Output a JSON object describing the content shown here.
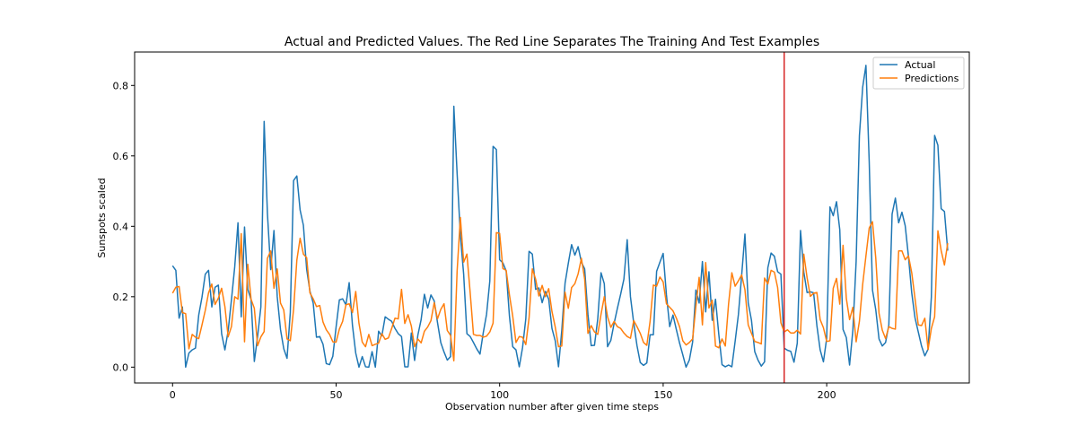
{
  "chart_data": {
    "type": "line",
    "title": "Actual and Predicted Values. The Red Line Separates The Training And Test Examples",
    "xlabel": "Observation number after given time steps",
    "ylabel": "Sunspots scaled",
    "xlim": [
      -11.6,
      243.6
    ],
    "ylim": [
      -0.045,
      0.895
    ],
    "xticks": [
      0,
      50,
      100,
      150,
      200
    ],
    "yticks": [
      0.0,
      0.2,
      0.4,
      0.6,
      0.8
    ],
    "xtick_labels": [
      "0",
      "50",
      "100",
      "150",
      "200"
    ],
    "ytick_labels": [
      "0.0",
      "0.2",
      "0.4",
      "0.6",
      "0.8"
    ],
    "grid": false,
    "legend_position": "top-right",
    "split_line": {
      "x": 187,
      "color": "#d62728"
    },
    "series": [
      {
        "name": "Actual",
        "color": "#1f77b4",
        "values": [
          0.288,
          0.275,
          0.139,
          0.171,
          0.0,
          0.04,
          0.049,
          0.054,
          0.148,
          0.199,
          0.264,
          0.275,
          0.171,
          0.227,
          0.233,
          0.095,
          0.049,
          0.103,
          0.191,
          0.284,
          0.41,
          0.143,
          0.398,
          0.221,
          0.192,
          0.016,
          0.087,
          0.171,
          0.698,
          0.437,
          0.277,
          0.388,
          0.2,
          0.107,
          0.052,
          0.025,
          0.155,
          0.53,
          0.543,
          0.446,
          0.403,
          0.278,
          0.216,
          0.182,
          0.085,
          0.087,
          0.065,
          0.01,
          0.007,
          0.031,
          0.114,
          0.191,
          0.194,
          0.177,
          0.24,
          0.119,
          0.04,
          0.0,
          0.03,
          0.001,
          0.0,
          0.044,
          0.0,
          0.102,
          0.089,
          0.143,
          0.136,
          0.13,
          0.11,
          0.095,
          0.087,
          0.001,
          0.001,
          0.097,
          0.019,
          0.091,
          0.135,
          0.207,
          0.168,
          0.205,
          0.188,
          0.127,
          0.07,
          0.043,
          0.02,
          0.03,
          0.741,
          0.55,
          0.374,
          0.264,
          0.095,
          0.087,
          0.07,
          0.052,
          0.037,
          0.098,
          0.15,
          0.245,
          0.627,
          0.618,
          0.305,
          0.296,
          0.273,
          0.145,
          0.058,
          0.049,
          0.001,
          0.055,
          0.137,
          0.329,
          0.321,
          0.221,
          0.225,
          0.183,
          0.215,
          0.193,
          0.11,
          0.075,
          0.001,
          0.104,
          0.238,
          0.295,
          0.348,
          0.318,
          0.342,
          0.298,
          0.279,
          0.15,
          0.061,
          0.062,
          0.137,
          0.268,
          0.237,
          0.058,
          0.076,
          0.124,
          0.167,
          0.207,
          0.25,
          0.362,
          0.2,
          0.125,
          0.061,
          0.013,
          0.005,
          0.012,
          0.092,
          0.092,
          0.272,
          0.298,
          0.323,
          0.205,
          0.115,
          0.148,
          0.108,
          0.069,
          0.035,
          0.0,
          0.02,
          0.071,
          0.219,
          0.182,
          0.3,
          0.157,
          0.271,
          0.133,
          0.193,
          0.094,
          0.007,
          0.001,
          0.006,
          0.001,
          0.073,
          0.149,
          0.261,
          0.378,
          0.183,
          0.133,
          0.044,
          0.02,
          0.003,
          0.015,
          0.282,
          0.324,
          0.315,
          0.271,
          0.264,
          0.054,
          0.048,
          0.045,
          0.014,
          0.068,
          0.388,
          0.27,
          0.212,
          0.214,
          0.211,
          0.118,
          0.049,
          0.015,
          0.082,
          0.455,
          0.43,
          0.47,
          0.39,
          0.107,
          0.084,
          0.006,
          0.105,
          0.3,
          0.657,
          0.795,
          0.857,
          0.583,
          0.219,
          0.163,
          0.08,
          0.06,
          0.07,
          0.12,
          0.435,
          0.48,
          0.41,
          0.44,
          0.402,
          0.314,
          0.211,
          0.14,
          0.1,
          0.06,
          0.032,
          0.051,
          0.199,
          0.658,
          0.63,
          0.45,
          0.442,
          0.331
        ]
      },
      {
        "name": "Predictions",
        "color": "#ff7f0e",
        "values": [
          0.21,
          0.227,
          0.229,
          0.155,
          0.152,
          0.052,
          0.093,
          0.085,
          0.081,
          0.12,
          0.161,
          0.211,
          0.236,
          0.178,
          0.196,
          0.224,
          0.172,
          0.086,
          0.115,
          0.2,
          0.193,
          0.379,
          0.072,
          0.292,
          0.193,
          0.167,
          0.061,
          0.086,
          0.101,
          0.309,
          0.33,
          0.224,
          0.279,
          0.182,
          0.162,
          0.08,
          0.075,
          0.164,
          0.304,
          0.366,
          0.321,
          0.311,
          0.211,
          0.194,
          0.172,
          0.175,
          0.128,
          0.106,
          0.093,
          0.072,
          0.071,
          0.108,
          0.13,
          0.177,
          0.18,
          0.155,
          0.215,
          0.124,
          0.071,
          0.058,
          0.093,
          0.061,
          0.065,
          0.068,
          0.095,
          0.079,
          0.083,
          0.11,
          0.139,
          0.137,
          0.221,
          0.124,
          0.149,
          0.117,
          0.058,
          0.08,
          0.069,
          0.102,
          0.114,
          0.132,
          0.183,
          0.137,
          0.164,
          0.18,
          0.104,
          0.09,
          0.018,
          0.273,
          0.425,
          0.298,
          0.321,
          0.211,
          0.093,
          0.09,
          0.09,
          0.085,
          0.088,
          0.1,
          0.125,
          0.382,
          0.38,
          0.28,
          0.275,
          0.205,
          0.145,
          0.07,
          0.087,
          0.085,
          0.064,
          0.14,
          0.279,
          0.25,
          0.202,
          0.232,
          0.2,
          0.223,
          0.158,
          0.114,
          0.058,
          0.06,
          0.213,
          0.167,
          0.226,
          0.237,
          0.265,
          0.309,
          0.25,
          0.096,
          0.118,
          0.1,
          0.093,
          0.15,
          0.2,
          0.143,
          0.113,
          0.13,
          0.115,
          0.11,
          0.097,
          0.087,
          0.082,
          0.132,
          0.115,
          0.096,
          0.07,
          0.062,
          0.13,
          0.233,
          0.23,
          0.256,
          0.242,
          0.18,
          0.17,
          0.16,
          0.14,
          0.115,
          0.075,
          0.063,
          0.07,
          0.08,
          0.172,
          0.255,
          0.12,
          0.297,
          0.168,
          0.19,
          0.06,
          0.055,
          0.08,
          0.06,
          0.18,
          0.268,
          0.23,
          0.245,
          0.262,
          0.22,
          0.12,
          0.096,
          0.073,
          0.07,
          0.066,
          0.253,
          0.236,
          0.275,
          0.27,
          0.226,
          0.126,
          0.1,
          0.106,
          0.097,
          0.097,
          0.105,
          0.094,
          0.321,
          0.254,
          0.201,
          0.21,
          0.212,
          0.135,
          0.112,
          0.073,
          0.075,
          0.224,
          0.252,
          0.179,
          0.346,
          0.195,
          0.135,
          0.17,
          0.072,
          0.13,
          0.235,
          0.316,
          0.395,
          0.413,
          0.31,
          0.153,
          0.105,
          0.081,
          0.115,
          0.11,
          0.108,
          0.33,
          0.33,
          0.305,
          0.316,
          0.268,
          0.195,
          0.12,
          0.118,
          0.139,
          0.05,
          0.11,
          0.143,
          0.387,
          0.331,
          0.29,
          0.352
        ]
      }
    ]
  }
}
